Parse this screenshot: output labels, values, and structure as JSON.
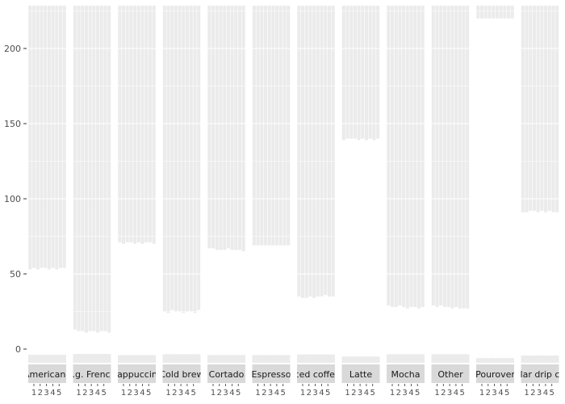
{
  "chart_data": {
    "type": "bar",
    "layout": "faceted small multiples",
    "title": "",
    "xlabel": "",
    "ylabel": "",
    "ylim": [
      0,
      225
    ],
    "yticks": [
      0,
      50,
      100,
      150,
      200
    ],
    "grid": true,
    "legend": "none",
    "facet_x_ticks": [
      "1",
      "2",
      "3",
      "4",
      "5"
    ],
    "facets": [
      {
        "label": "Americano",
        "values": [
          53,
          54,
          53,
          54,
          54,
          53,
          54,
          53,
          54,
          54
        ]
      },
      {
        "label": "Dark (e.g. French roast)",
        "values": [
          13,
          12,
          12,
          11,
          12,
          12,
          11,
          12,
          12,
          11
        ]
      },
      {
        "label": "Cappuccino",
        "values": [
          71,
          70,
          71,
          71,
          70,
          71,
          70,
          71,
          71,
          70
        ]
      },
      {
        "label": "Cold brew",
        "values": [
          25,
          24,
          26,
          25,
          25,
          24,
          25,
          25,
          24,
          26
        ]
      },
      {
        "label": "Cortado",
        "values": [
          67,
          67,
          66,
          66,
          66,
          67,
          66,
          66,
          66,
          65
        ]
      },
      {
        "label": "Espresso",
        "values": [
          69,
          69,
          69,
          69,
          69,
          69,
          69,
          69,
          69,
          69
        ]
      },
      {
        "label": "Iced coffee",
        "values": [
          35,
          34,
          34,
          35,
          34,
          35,
          35,
          36,
          35,
          35
        ]
      },
      {
        "label": "Latte",
        "values": [
          139,
          140,
          140,
          140,
          139,
          140,
          139,
          140,
          139,
          140
        ]
      },
      {
        "label": "Mocha",
        "values": [
          29,
          28,
          28,
          29,
          28,
          27,
          28,
          28,
          27,
          28
        ]
      },
      {
        "label": "Other",
        "values": [
          29,
          28,
          29,
          28,
          28,
          27,
          28,
          27,
          27,
          27
        ]
      },
      {
        "label": "Pourover",
        "values": [
          220,
          220,
          220,
          220,
          220,
          220,
          220,
          220,
          220,
          220
        ]
      },
      {
        "label": "Regular drip coffee",
        "values": [
          91,
          91,
          92,
          92,
          91,
          92,
          91,
          92,
          91,
          91
        ]
      }
    ]
  }
}
